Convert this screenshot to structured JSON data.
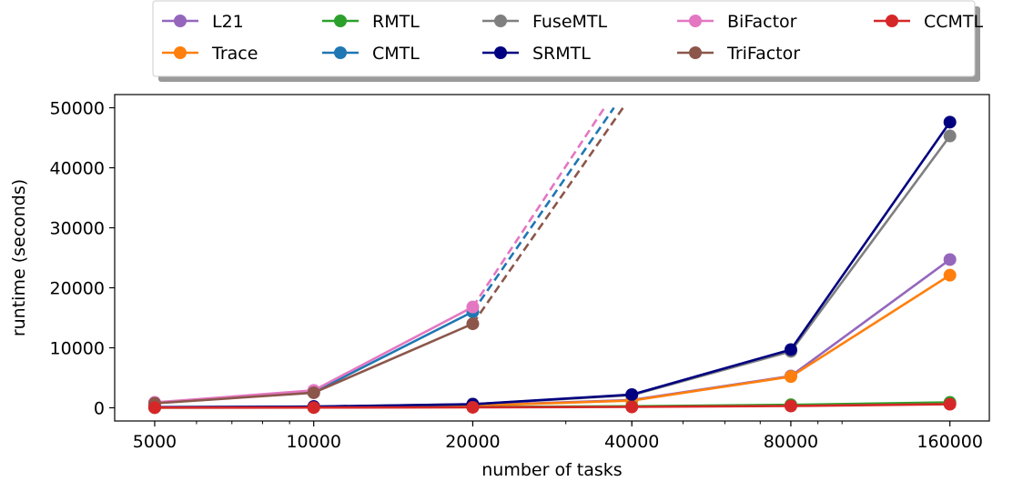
{
  "chart_data": {
    "type": "line",
    "title": "",
    "xlabel": "number of tasks",
    "ylabel": "runtime (seconds)",
    "x_scale": "log2",
    "x": [
      5000,
      10000,
      20000,
      40000,
      80000,
      160000
    ],
    "x_tick_labels": [
      "5000",
      "10000",
      "20000",
      "40000",
      "80000",
      "160000"
    ],
    "y_ticks": [
      0,
      10000,
      20000,
      30000,
      40000,
      50000
    ],
    "y_tick_labels": [
      "0",
      "10000",
      "20000",
      "30000",
      "40000",
      "50000"
    ],
    "ylim": [
      -2200,
      52200
    ],
    "xlim": [
      4200,
      190000
    ],
    "grid": false,
    "legend_position": "top (above plot), 5 columns",
    "series": [
      {
        "name": "L21",
        "color": "#9467bd",
        "values": [
          80,
          150,
          400,
          1300,
          5300,
          24700
        ]
      },
      {
        "name": "Trace",
        "color": "#ff7f0e",
        "values": [
          60,
          120,
          350,
          1200,
          5200,
          22100
        ]
      },
      {
        "name": "RMTL",
        "color": "#2ca02c",
        "values": [
          30,
          60,
          130,
          250,
          500,
          900
        ]
      },
      {
        "name": "CMTL",
        "color": "#1f77b4",
        "values": [
          800,
          2600,
          16000,
          null,
          null,
          null
        ],
        "extrapolated_to_x": 37000
      },
      {
        "name": "FuseMTL",
        "color": "#7f7f7f",
        "values": [
          100,
          200,
          600,
          2100,
          9400,
          45300
        ]
      },
      {
        "name": "SRMTL",
        "color": "#000080",
        "values": [
          100,
          200,
          600,
          2200,
          9700,
          47600
        ]
      },
      {
        "name": "BiFactor",
        "color": "#e377c2",
        "values": [
          900,
          2900,
          16800,
          null,
          null,
          null
        ],
        "extrapolated_to_x": 35500
      },
      {
        "name": "TriFactor",
        "color": "#8c564b",
        "values": [
          750,
          2500,
          14000,
          null,
          null,
          null
        ],
        "extrapolated_to_x": 38500
      },
      {
        "name": "CCMTL",
        "color": "#d62728",
        "values": [
          20,
          40,
          80,
          150,
          300,
          600
        ]
      }
    ],
    "legend_order": [
      "L21",
      "Trace",
      "RMTL",
      "CMTL",
      "FuseMTL",
      "SRMTL",
      "BiFactor",
      "TriFactor",
      "CCMTL"
    ]
  }
}
